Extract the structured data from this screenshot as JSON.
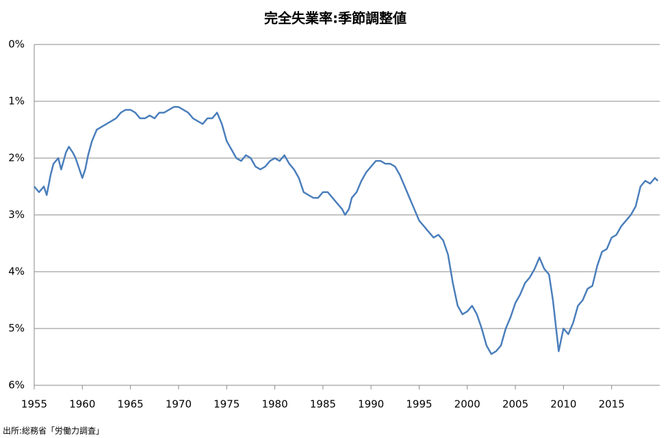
{
  "chart_data": {
    "type": "line",
    "title": "完全失業率:季節調整値",
    "note": "出所:総務省「労働力調査」",
    "series": [
      {
        "color": "#4a7ebb",
        "x": [
          1955.0,
          1955.5,
          1956.0,
          1956.3,
          1956.7,
          1957.0,
          1957.5,
          1957.8,
          1958.3,
          1958.6,
          1959.0,
          1959.3,
          1959.7,
          1960.0,
          1960.3,
          1960.6,
          1961.0,
          1961.5,
          1962.0,
          1962.5,
          1963.0,
          1963.5,
          1964.0,
          1964.5,
          1965.0,
          1965.5,
          1966.0,
          1966.5,
          1967.0,
          1967.5,
          1968.0,
          1968.5,
          1969.0,
          1969.5,
          1970.0,
          1970.5,
          1971.0,
          1971.5,
          1972.0,
          1972.5,
          1973.0,
          1973.5,
          1974.0,
          1974.5,
          1975.0,
          1975.5,
          1976.0,
          1976.5,
          1977.0,
          1977.5,
          1978.0,
          1978.5,
          1979.0,
          1979.5,
          1980.0,
          1980.5,
          1981.0,
          1981.5,
          1982.0,
          1982.5,
          1983.0,
          1983.5,
          1984.0,
          1984.5,
          1985.0,
          1985.5,
          1986.0,
          1986.5,
          1987.0,
          1987.3,
          1987.7,
          1988.0,
          1988.5,
          1989.0,
          1989.5,
          1990.0,
          1990.5,
          1991.0,
          1991.5,
          1992.0,
          1992.5,
          1993.0,
          1993.5,
          1994.0,
          1994.5,
          1995.0,
          1995.5,
          1996.0,
          1996.5,
          1997.0,
          1997.5,
          1998.0,
          1998.5,
          1999.0,
          1999.5,
          2000.0,
          2000.5,
          2001.0,
          2001.5,
          2002.0,
          2002.5,
          2003.0,
          2003.5,
          2004.0,
          2004.5,
          2005.0,
          2005.5,
          2006.0,
          2006.5,
          2007.0,
          2007.5,
          2008.0,
          2008.5,
          2008.9,
          2009.5,
          2010.0,
          2010.5,
          2011.0,
          2011.5,
          2012.0,
          2012.5,
          2013.0,
          2013.5,
          2014.0,
          2014.5,
          2015.0,
          2015.5,
          2016.0,
          2016.5,
          2017.0,
          2017.5,
          2018.0,
          2018.5,
          2019.0,
          2019.5,
          2019.8
        ],
        "values": [
          2.5,
          2.6,
          2.5,
          2.65,
          2.3,
          2.1,
          2.0,
          2.2,
          1.9,
          1.8,
          1.9,
          2.0,
          2.2,
          2.35,
          2.2,
          1.95,
          1.7,
          1.5,
          1.45,
          1.4,
          1.35,
          1.3,
          1.2,
          1.15,
          1.15,
          1.2,
          1.3,
          1.3,
          1.25,
          1.3,
          1.2,
          1.2,
          1.15,
          1.1,
          1.1,
          1.15,
          1.2,
          1.3,
          1.35,
          1.4,
          1.3,
          1.3,
          1.2,
          1.4,
          1.7,
          1.85,
          2.0,
          2.05,
          1.95,
          2.0,
          2.15,
          2.2,
          2.15,
          2.05,
          2.0,
          2.05,
          1.95,
          2.1,
          2.2,
          2.35,
          2.6,
          2.65,
          2.7,
          2.7,
          2.6,
          2.6,
          2.7,
          2.8,
          2.9,
          3.0,
          2.9,
          2.7,
          2.6,
          2.4,
          2.25,
          2.15,
          2.05,
          2.05,
          2.1,
          2.1,
          2.15,
          2.3,
          2.5,
          2.7,
          2.9,
          3.1,
          3.2,
          3.3,
          3.4,
          3.35,
          3.45,
          3.7,
          4.2,
          4.6,
          4.75,
          4.7,
          4.6,
          4.75,
          5.0,
          5.3,
          5.45,
          5.4,
          5.3,
          5.0,
          4.8,
          4.55,
          4.4,
          4.2,
          4.1,
          3.95,
          3.75,
          3.95,
          4.05,
          4.5,
          5.4,
          5.0,
          5.1,
          4.9,
          4.6,
          4.5,
          4.3,
          4.25,
          3.9,
          3.65,
          3.6,
          3.4,
          3.35,
          3.2,
          3.1,
          3.0,
          2.85,
          2.5,
          2.4,
          2.45,
          2.35,
          2.4
        ]
      }
    ],
    "xlim": [
      1955,
      2020
    ],
    "xticks": [
      1955,
      1960,
      1965,
      1970,
      1975,
      1980,
      1985,
      1990,
      1995,
      2000,
      2005,
      2010,
      2015
    ],
    "ylim": [
      0,
      6
    ],
    "yinverted": true,
    "yticks": [
      {
        "value": 0,
        "label": "0%"
      },
      {
        "value": 1,
        "label": "1%"
      },
      {
        "value": 2,
        "label": "2%"
      },
      {
        "value": 3,
        "label": "3%"
      },
      {
        "value": 4,
        "label": "4%"
      },
      {
        "value": 5,
        "label": "5%"
      },
      {
        "value": 6,
        "label": "6%"
      }
    ],
    "grid": true
  }
}
